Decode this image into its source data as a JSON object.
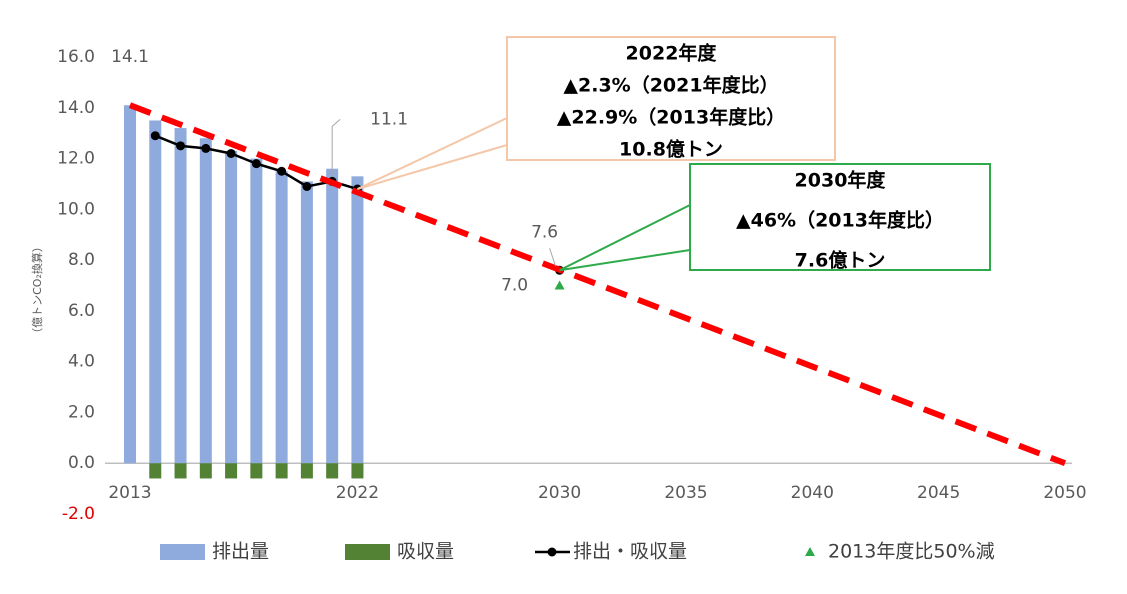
{
  "chart_data": {
    "type": "bar",
    "y_axis_label": "（億トンCO₂換算）",
    "xlim": [
      2013,
      2050
    ],
    "xticks": [
      2013,
      2022,
      2030,
      2035,
      2040,
      2045,
      2050
    ],
    "ylim": [
      -2,
      16
    ],
    "yticks": [
      {
        "value": -2,
        "label": "-2.0"
      },
      {
        "value": 0,
        "label": "0.0"
      },
      {
        "value": 2,
        "label": "2.0"
      },
      {
        "value": 4,
        "label": "4.0"
      },
      {
        "value": 6,
        "label": "6.0"
      },
      {
        "value": 8,
        "label": "8.0"
      },
      {
        "value": 10,
        "label": "10.0"
      },
      {
        "value": 12,
        "label": "12.0"
      },
      {
        "value": 14,
        "label": "14.0"
      },
      {
        "value": 16,
        "label": "16.0"
      }
    ],
    "grid": false,
    "series": [
      {
        "name": "排出量",
        "kind": "bar",
        "color": "#8faadc",
        "x": [
          2013,
          2014,
          2015,
          2016,
          2017,
          2018,
          2019,
          2020,
          2021,
          2022
        ],
        "values": [
          14.1,
          13.5,
          13.2,
          12.8,
          12.3,
          12.0,
          11.5,
          11.1,
          11.6,
          11.3
        ],
        "value_labels": [
          "14.1",
          null,
          null,
          null,
          null,
          null,
          null,
          null,
          null,
          null
        ]
      },
      {
        "name": "吸収量",
        "kind": "bar",
        "color": "#548235",
        "x": [
          2013,
          2014,
          2015,
          2016,
          2017,
          2018,
          2019,
          2020,
          2021,
          2022
        ],
        "values": [
          null,
          -0.6,
          -0.6,
          -0.6,
          -0.6,
          -0.6,
          -0.6,
          -0.6,
          -0.6,
          -0.6
        ]
      },
      {
        "name": "排出・吸収量",
        "kind": "line",
        "color": "#000000",
        "x": [
          2014,
          2015,
          2016,
          2017,
          2018,
          2019,
          2020,
          2021,
          2022,
          2023,
          2024,
          2025,
          2026,
          2027,
          2028,
          2029,
          2030
        ],
        "values": [
          12.9,
          12.5,
          12.4,
          12.2,
          11.8,
          11.5,
          10.9,
          11.1,
          10.8,
          null,
          null,
          null,
          null,
          null,
          null,
          null,
          7.6
        ],
        "value_labels": [
          null,
          null,
          null,
          null,
          null,
          null,
          null,
          "11.1",
          null,
          null,
          null,
          null,
          null,
          null,
          null,
          null,
          "7.6"
        ]
      },
      {
        "name": "2013年度比50%減",
        "kind": "marker",
        "color": "#2eaa4a",
        "x": [
          2030
        ],
        "values": [
          7.0
        ],
        "value_labels": [
          "7.0"
        ]
      },
      {
        "kind": "dashed",
        "color": "#ff0000",
        "x": [
          2013,
          2050
        ],
        "values": [
          14.1,
          0
        ]
      }
    ],
    "annotations": [
      {
        "lines": [
          "2022年度",
          "▲2.3%（2021年度比）",
          "▲22.9%（2013年度比）",
          "10.8億トン"
        ],
        "color": "#f4c7a8"
      },
      {
        "lines": [
          "2030年度",
          "▲46%（2013年度比）",
          "7.6億トン"
        ],
        "color": "#2eaa4a"
      }
    ]
  }
}
